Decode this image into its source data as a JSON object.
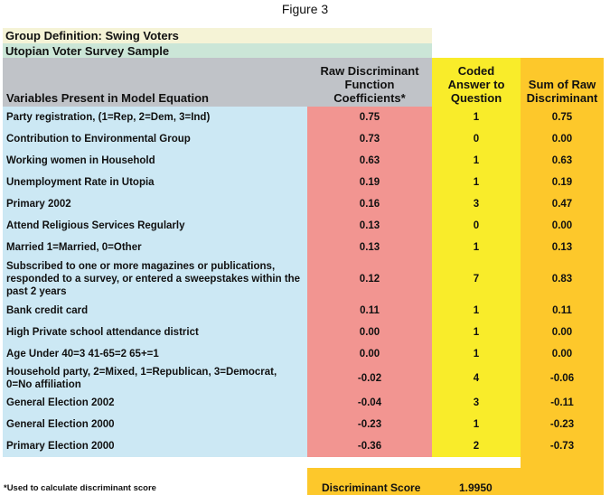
{
  "title": "Figure 3",
  "group_definition": "Group Definition: Swing Voters",
  "sample": "Utopian Voter Survey Sample",
  "headers": {
    "variables": "Variables Present in Model Equation",
    "coef": [
      "Raw Discriminant",
      "Function",
      "Coefficients*"
    ],
    "coded": [
      "Coded",
      "Answer to",
      "Question"
    ],
    "sum": [
      "Sum of Raw",
      "Discriminant"
    ]
  },
  "rows": [
    {
      "label": "Party registration, (1=Rep, 2=Dem, 3=Ind)",
      "coef": "0.75",
      "code": "1",
      "sum": "0.75"
    },
    {
      "label": "Contribution to Environmental Group",
      "coef": "0.73",
      "code": "0",
      "sum": "0.00"
    },
    {
      "label": "Working women in Household",
      "coef": "0.63",
      "code": "1",
      "sum": "0.63"
    },
    {
      "label": "Unemployment Rate in Utopia",
      "coef": "0.19",
      "code": "1",
      "sum": "0.19"
    },
    {
      "label": "Primary 2002",
      "coef": "0.16",
      "code": "3",
      "sum": "0.47"
    },
    {
      "label": "Attend Religious Services Regularly",
      "coef": "0.13",
      "code": "0",
      "sum": "0.00"
    },
    {
      "label": "Married 1=Married, 0=Other",
      "coef": "0.13",
      "code": "1",
      "sum": "0.13"
    },
    {
      "label": "Subscribed to one or more magazines or publications, responded to a survey, or entered a sweepstakes within the past 2 years",
      "coef": "0.12",
      "code": "7",
      "sum": "0.83"
    },
    {
      "label": "Bank credit card",
      "coef": "0.11",
      "code": "1",
      "sum": "0.11"
    },
    {
      "label": "High Private school attendance district",
      "coef": "0.00",
      "code": "1",
      "sum": "0.00"
    },
    {
      "label": "Age Under 40=3 41-65=2 65+=1",
      "coef": "0.00",
      "code": "1",
      "sum": "0.00"
    },
    {
      "label": "Household party, 2=Mixed, 1=Republican, 3=Democrat, 0=No affiliation",
      "coef": "-0.02",
      "code": "4",
      "sum": "-0.06"
    },
    {
      "label": "General Election 2002",
      "coef": "-0.04",
      "code": "3",
      "sum": "-0.11"
    },
    {
      "label": "General Election 2000",
      "coef": "-0.23",
      "code": "1",
      "sum": "-0.23"
    },
    {
      "label": "Primary Election 2000",
      "coef": "-0.36",
      "code": "2",
      "sum": "-0.73"
    }
  ],
  "score_label": "Discriminant Score",
  "score_value": "1.9950",
  "footnote": "*Used to calculate discriminant score"
}
